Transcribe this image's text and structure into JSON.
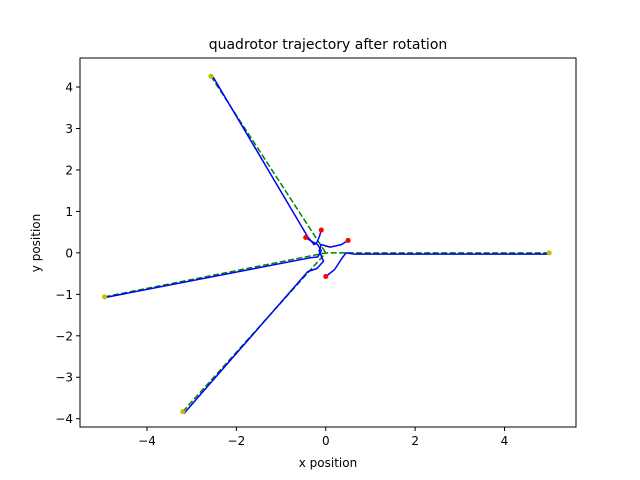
{
  "chart_data": {
    "type": "line",
    "title": "quadrotor trajectory after rotation",
    "xlabel": "x position",
    "ylabel": "y position",
    "xlim": [
      -5.5,
      5.6
    ],
    "ylim": [
      -4.2,
      4.7
    ],
    "xticks": [
      -4,
      -2,
      0,
      2,
      4
    ],
    "yticks": [
      -4,
      -3,
      -2,
      -1,
      0,
      1,
      2,
      3,
      4
    ],
    "grid": false,
    "legend": "none",
    "colors": {
      "reference": "#008000",
      "actual": "#0000ff",
      "start": "#ff0000",
      "goal": "#bfbf00"
    },
    "start_points": [
      [
        -0.1,
        0.55
      ],
      [
        -0.45,
        0.37
      ],
      [
        0.5,
        0.3
      ],
      [
        0.0,
        -0.57
      ]
    ],
    "goal_points": [
      [
        -2.57,
        4.26
      ],
      [
        -4.95,
        -1.06
      ],
      [
        -3.2,
        -3.83
      ],
      [
        5.0,
        0.0
      ]
    ],
    "reference_paths": [
      [
        [
          -2.57,
          4.26
        ],
        [
          0.0,
          0.0
        ]
      ],
      [
        [
          -4.95,
          -1.06
        ],
        [
          0.0,
          0.0
        ]
      ],
      [
        [
          -3.2,
          -3.83
        ],
        [
          0.0,
          0.0
        ]
      ],
      [
        [
          5.0,
          0.0
        ],
        [
          0.0,
          0.0
        ]
      ]
    ],
    "actual_paths": [
      [
        [
          -0.1,
          0.55
        ],
        [
          -0.14,
          0.4
        ],
        [
          -0.2,
          0.25
        ],
        [
          -0.26,
          0.2
        ],
        [
          -0.4,
          0.38
        ],
        [
          -2.52,
          4.24
        ]
      ],
      [
        [
          -0.45,
          0.37
        ],
        [
          -0.35,
          0.3
        ],
        [
          -0.18,
          0.2
        ],
        [
          -0.1,
          0.05
        ],
        [
          -0.18,
          -0.1
        ],
        [
          -0.35,
          -0.12
        ],
        [
          -4.95,
          -1.08
        ]
      ],
      [
        [
          0.5,
          0.3
        ],
        [
          0.35,
          0.2
        ],
        [
          0.1,
          0.14
        ],
        [
          -0.1,
          0.2
        ],
        [
          -0.15,
          0.05
        ],
        [
          -0.05,
          -0.2
        ],
        [
          -0.2,
          -0.38
        ],
        [
          -0.4,
          -0.45
        ],
        [
          -3.18,
          -3.88
        ]
      ],
      [
        [
          0.0,
          -0.57
        ],
        [
          0.2,
          -0.4
        ],
        [
          0.35,
          -0.15
        ],
        [
          0.45,
          0.0
        ],
        [
          0.65,
          -0.03
        ],
        [
          1.0,
          -0.03
        ],
        [
          5.0,
          -0.03
        ]
      ]
    ]
  }
}
